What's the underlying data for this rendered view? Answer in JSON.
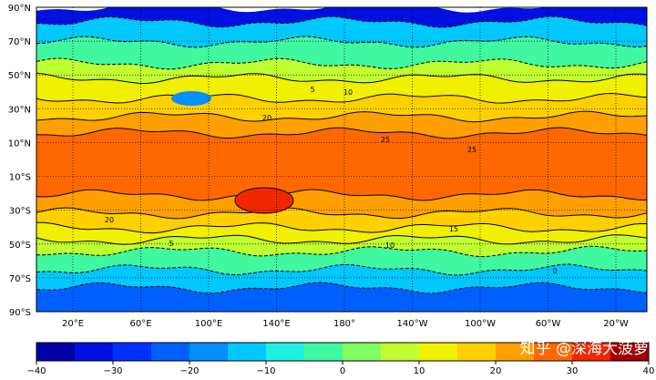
{
  "map": {
    "lat_ticks": [
      "90°N",
      "70°N",
      "50°N",
      "30°N",
      "10°N",
      "10°S",
      "30°S",
      "50°S",
      "70°S",
      "90°S"
    ],
    "lon_ticks": [
      "20°E",
      "60°E",
      "100°E",
      "140°E",
      "180°",
      "140°W",
      "100°W",
      "60°W",
      "20°W"
    ],
    "contour_labels": [
      "25",
      "20",
      "15",
      "10",
      "10",
      "5",
      "5",
      "20",
      "25",
      "0"
    ],
    "colorbar": {
      "levels": [
        -40,
        -35,
        -30,
        -25,
        -20,
        -15,
        -10,
        -5,
        0,
        5,
        10,
        15,
        20,
        25,
        30,
        35,
        40
      ],
      "colors": [
        "#0000a8",
        "#0010e0",
        "#0030ff",
        "#0060ff",
        "#0090ff",
        "#00c8ff",
        "#20f0e0",
        "#40f8a0",
        "#80ff60",
        "#c0ff30",
        "#f0f000",
        "#ffd000",
        "#ffa000",
        "#ff6800",
        "#f02800",
        "#a00000"
      ],
      "ticks": [
        {
          "value": -40,
          "label": "−40"
        },
        {
          "value": -30,
          "label": "−30"
        },
        {
          "value": -20,
          "label": "−20"
        },
        {
          "value": -10,
          "label": "−10"
        },
        0,
        10,
        20,
        30,
        40
      ]
    },
    "watermark": "知乎 @深海大菠萝"
  }
}
